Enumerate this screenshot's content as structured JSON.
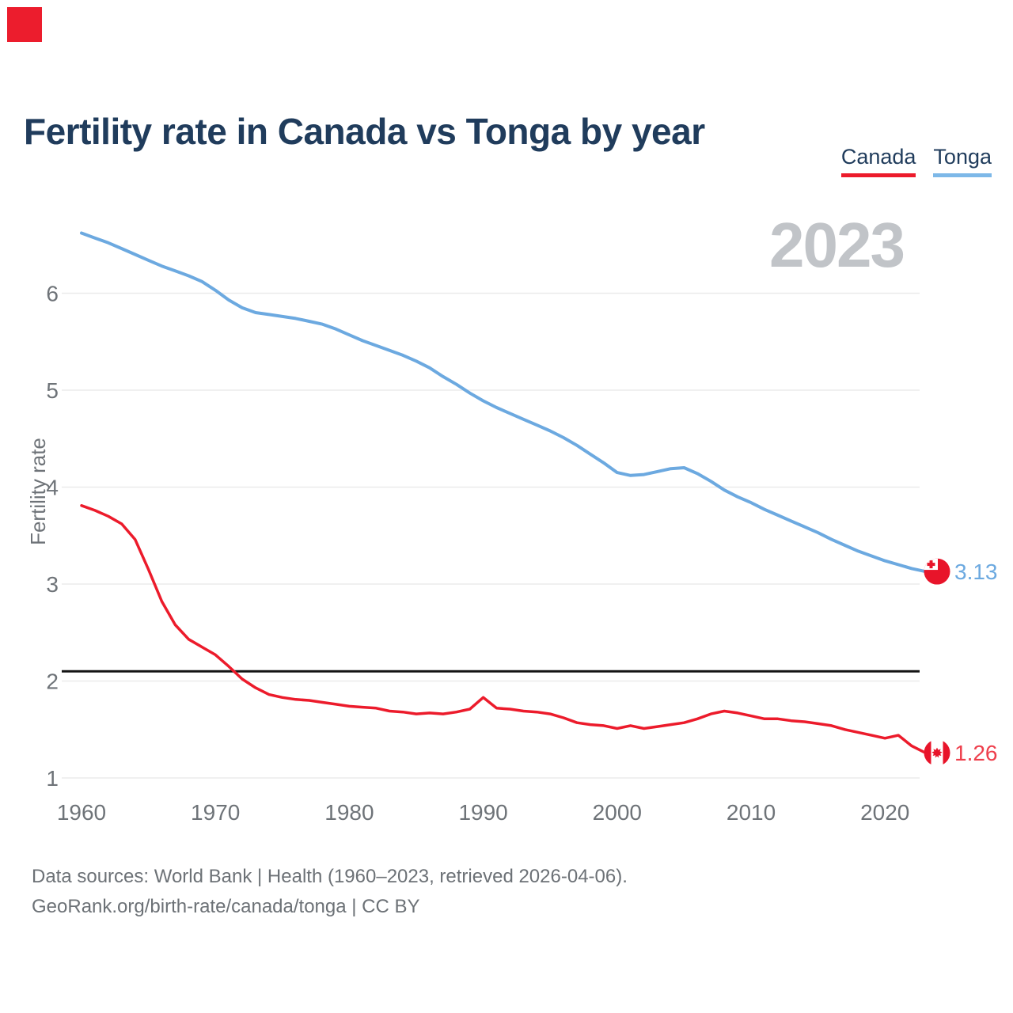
{
  "marker_color": "#ec1d2d",
  "header": {
    "title": "Fertility rate in Canada vs Tonga by year"
  },
  "legend": [
    {
      "label": "Canada",
      "color": "#ec1b2b"
    },
    {
      "label": "Tonga",
      "color": "#7db8e8"
    }
  ],
  "watermark": {
    "year": "2023"
  },
  "footer": {
    "line1": "Data sources: World Bank | Health (1960–2023, retrieved 2026-04-06).",
    "line2": "GeoRank.org/birth-rate/canada/tonga | CC BY"
  },
  "chart_data": {
    "type": "line",
    "title": "Fertility rate in Canada vs Tonga by year",
    "xlabel": "",
    "ylabel": "Fertility rate",
    "grid": "horizontal",
    "legend_position": "top-right",
    "xlim": [
      1960,
      2023
    ],
    "ylim": [
      0.85,
      6.8
    ],
    "yticks": [
      1,
      2,
      3,
      4,
      5,
      6
    ],
    "xticks": [
      1960,
      1970,
      1980,
      1990,
      2000,
      2010,
      2020
    ],
    "x": [
      1960,
      1961,
      1962,
      1963,
      1964,
      1965,
      1966,
      1967,
      1968,
      1969,
      1970,
      1971,
      1972,
      1973,
      1974,
      1975,
      1976,
      1977,
      1978,
      1979,
      1980,
      1981,
      1982,
      1983,
      1984,
      1985,
      1986,
      1987,
      1988,
      1989,
      1990,
      1991,
      1992,
      1993,
      1994,
      1995,
      1996,
      1997,
      1998,
      1999,
      2000,
      2001,
      2002,
      2003,
      2004,
      2005,
      2006,
      2007,
      2008,
      2009,
      2010,
      2011,
      2012,
      2013,
      2014,
      2015,
      2016,
      2017,
      2018,
      2019,
      2020,
      2021,
      2022,
      2023
    ],
    "series": [
      {
        "name": "Tonga",
        "color": "#6ca9e0",
        "label_color": "#6ca9e0",
        "flag": "tonga",
        "end_label": "3.13",
        "values": [
          6.62,
          6.57,
          6.52,
          6.46,
          6.4,
          6.34,
          6.28,
          6.23,
          6.18,
          6.12,
          6.03,
          5.93,
          5.85,
          5.8,
          5.78,
          5.76,
          5.74,
          5.71,
          5.68,
          5.63,
          5.57,
          5.51,
          5.46,
          5.41,
          5.36,
          5.3,
          5.23,
          5.14,
          5.06,
          4.97,
          4.89,
          4.82,
          4.76,
          4.7,
          4.64,
          4.58,
          4.51,
          4.43,
          4.34,
          4.25,
          4.15,
          4.12,
          4.13,
          4.16,
          4.19,
          4.2,
          4.14,
          4.06,
          3.97,
          3.9,
          3.84,
          3.77,
          3.71,
          3.65,
          3.59,
          3.53,
          3.46,
          3.4,
          3.34,
          3.29,
          3.24,
          3.2,
          3.16,
          3.13
        ]
      },
      {
        "name": "Canada",
        "color": "#ec1b2b",
        "label_color": "#ee3f4c",
        "flag": "canada",
        "end_label": "1.26",
        "values": [
          3.81,
          3.76,
          3.7,
          3.62,
          3.46,
          3.15,
          2.82,
          2.58,
          2.43,
          2.35,
          2.27,
          2.15,
          2.02,
          1.93,
          1.86,
          1.83,
          1.81,
          1.8,
          1.78,
          1.76,
          1.74,
          1.73,
          1.72,
          1.69,
          1.68,
          1.66,
          1.67,
          1.66,
          1.68,
          1.71,
          1.83,
          1.72,
          1.71,
          1.69,
          1.68,
          1.66,
          1.62,
          1.57,
          1.55,
          1.54,
          1.51,
          1.54,
          1.51,
          1.53,
          1.55,
          1.57,
          1.61,
          1.66,
          1.69,
          1.67,
          1.64,
          1.61,
          1.61,
          1.59,
          1.58,
          1.56,
          1.54,
          1.5,
          1.47,
          1.44,
          1.41,
          1.44,
          1.33,
          1.26
        ]
      }
    ],
    "reference_line": {
      "value": 2.1,
      "color": "#141414"
    }
  }
}
